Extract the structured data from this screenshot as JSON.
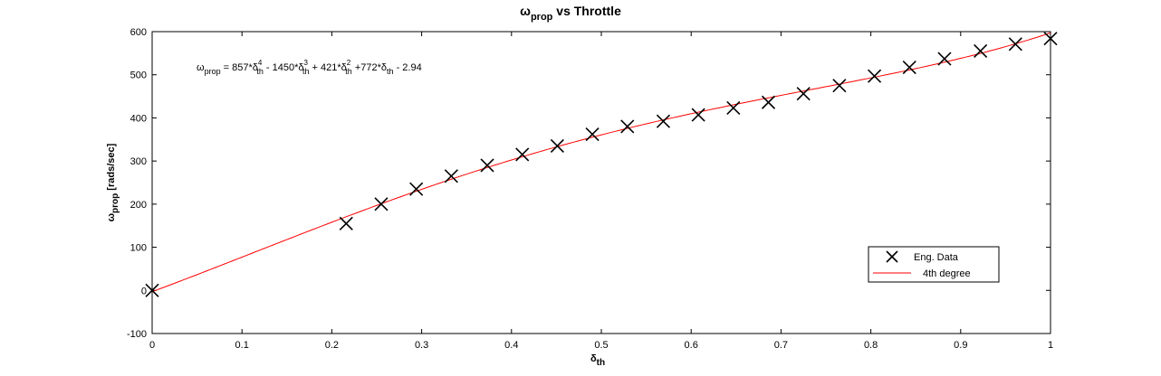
{
  "chart_data": {
    "type": "line",
    "title": {
      "main": "ω",
      "sub": "prop",
      "rest": " vs Throttle"
    },
    "xlabel": {
      "main": "δ",
      "sub": "th"
    },
    "ylabel": {
      "main": "ω",
      "sub": "prop",
      "rest": " [rads/sec]"
    },
    "xlim": [
      0,
      1
    ],
    "ylim": [
      -100,
      600
    ],
    "xticks": [
      "0",
      "0.1",
      "0.2",
      "0.3",
      "0.4",
      "0.5",
      "0.6",
      "0.7",
      "0.8",
      "0.9",
      "1"
    ],
    "yticks": [
      "-100",
      "0",
      "100",
      "200",
      "300",
      "400",
      "500",
      "600"
    ],
    "grid": false,
    "equation": {
      "lhs_main": "ω",
      "lhs_sub": "prop",
      "c4": " = 857*δ",
      "p4": "4",
      "c3": " - 1450*δ",
      "p3": "3",
      "c2": " + 421*δ",
      "p2": "2",
      "c1": " +772*δ",
      "c0": " - 2.94",
      "sub": "th"
    },
    "coefficients": [
      857,
      -1450,
      421,
      772,
      -2.94
    ],
    "legend_position": "bottom-right",
    "series": [
      {
        "name": "Eng. Data",
        "style": "markers",
        "marker": "x",
        "color": "#000000",
        "x": [
          0,
          0.216,
          0.255,
          0.294,
          0.333,
          0.373,
          0.412,
          0.451,
          0.49,
          0.529,
          0.569,
          0.608,
          0.647,
          0.686,
          0.725,
          0.765,
          0.804,
          0.843,
          0.882,
          0.922,
          0.961,
          1.0
        ],
        "y": [
          0,
          155,
          200,
          235,
          265,
          290,
          315,
          335,
          362,
          380,
          392,
          407,
          423,
          436,
          456,
          475,
          497,
          517,
          537,
          555,
          571,
          584
        ]
      },
      {
        "name": "4th degree",
        "style": "line",
        "color": "#ff0000"
      }
    ]
  }
}
